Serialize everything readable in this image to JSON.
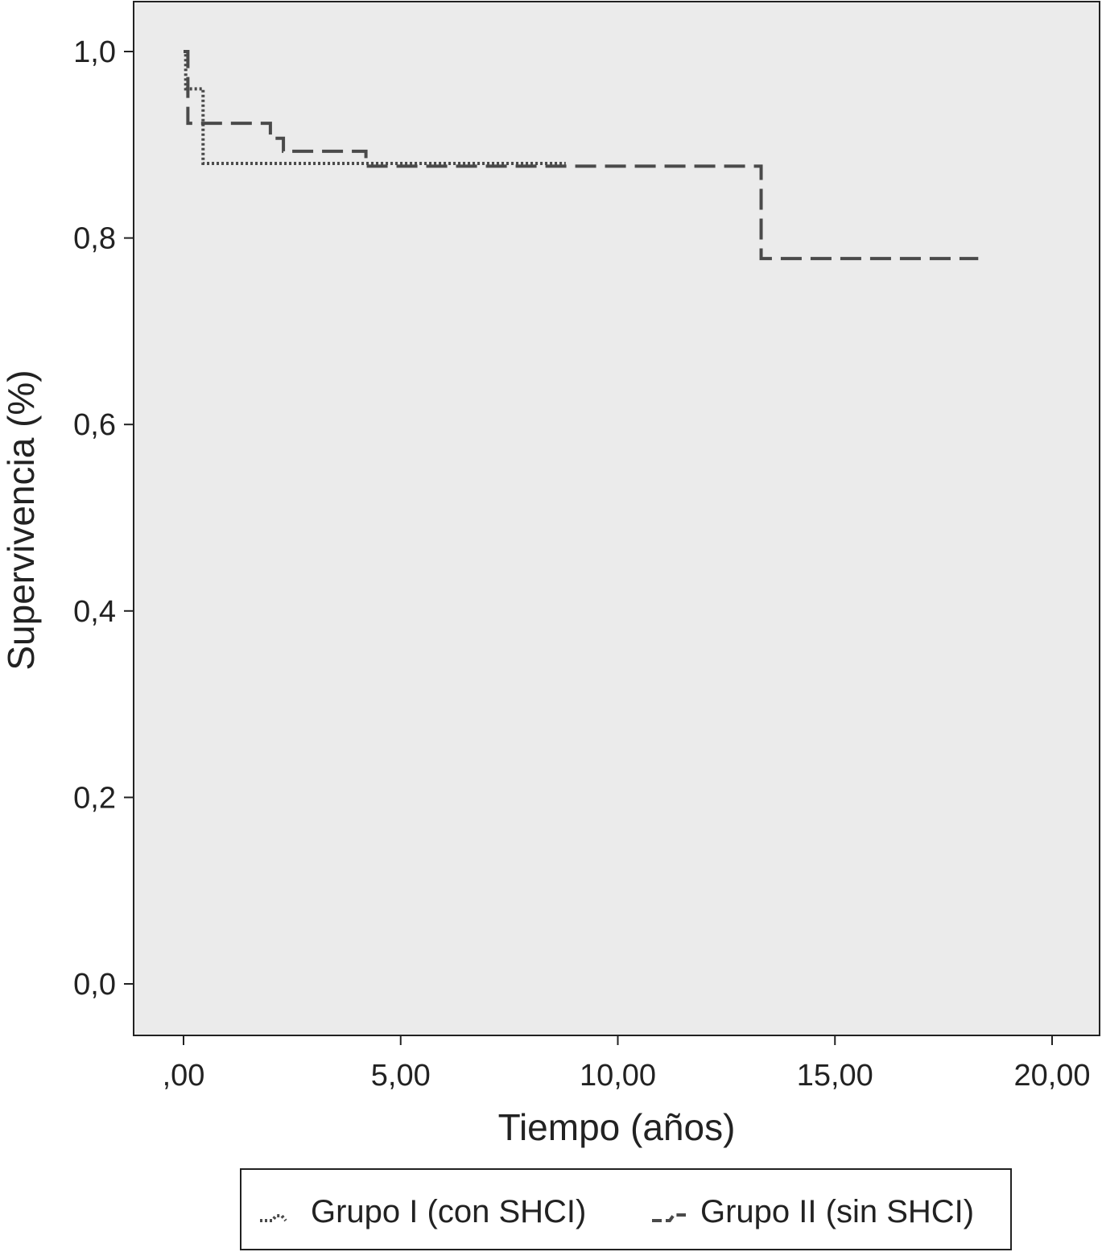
{
  "chart_data": {
    "type": "line",
    "xlabel": "Tiempo (años)",
    "ylabel": "Supervivencia (%)",
    "xlim": [
      0,
      20
    ],
    "ylim": [
      0,
      1
    ],
    "x_ticks": [
      {
        "value": 0,
        "label": ",00"
      },
      {
        "value": 5,
        "label": "5,00"
      },
      {
        "value": 10,
        "label": "10,00"
      },
      {
        "value": 15,
        "label": "15,00"
      },
      {
        "value": 20,
        "label": "20,00"
      }
    ],
    "y_ticks": [
      {
        "value": 0.0,
        "label": "0,0"
      },
      {
        "value": 0.2,
        "label": "0,2"
      },
      {
        "value": 0.4,
        "label": "0,4"
      },
      {
        "value": 0.6,
        "label": "0,6"
      },
      {
        "value": 0.8,
        "label": "0,8"
      },
      {
        "value": 1.0,
        "label": "1,0"
      }
    ],
    "grid": false,
    "legend_position": "bottom",
    "plot_background": "#ebebeb",
    "line_color": "#4a4a4a",
    "series": [
      {
        "name": "Grupo I (con SHCI)",
        "style": "dotted",
        "step_points": [
          [
            0,
            1.0
          ],
          [
            0.05,
            0.96
          ],
          [
            0.45,
            0.88
          ],
          [
            8.8,
            0.88
          ]
        ]
      },
      {
        "name": "Grupo II (sin SHCI)",
        "style": "dashed",
        "step_points": [
          [
            0,
            1.0
          ],
          [
            0.1,
            0.923
          ],
          [
            2.0,
            0.907
          ],
          [
            2.3,
            0.893
          ],
          [
            4.2,
            0.877
          ],
          [
            13.3,
            0.778
          ],
          [
            18.3,
            0.778
          ]
        ]
      }
    ]
  }
}
